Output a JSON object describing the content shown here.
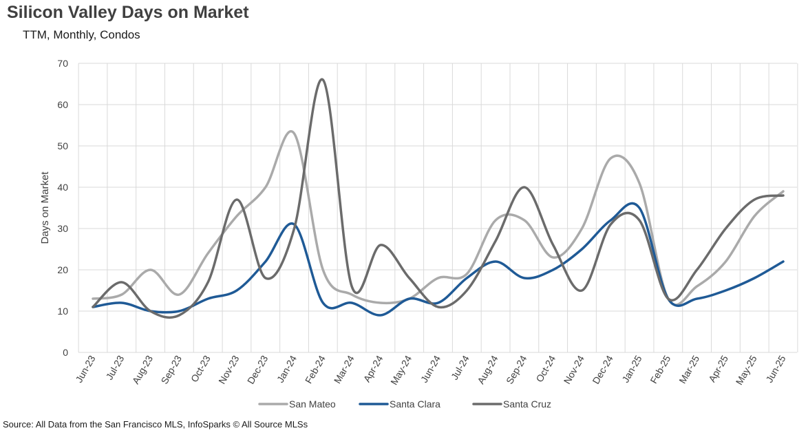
{
  "title": "Silicon Valley Days on Market",
  "subtitle": "TTM, Monthly, Condos",
  "source": "Source: All Data from the San Francisco MLS, InfoSparks © All Source MLSs",
  "chart_data": {
    "type": "line",
    "title": "Silicon Valley Days on Market",
    "subtitle": "TTM, Monthly, Condos",
    "xlabel": "",
    "ylabel": "Days on Market",
    "ylim": [
      0,
      70
    ],
    "yticks": [
      0,
      10,
      20,
      30,
      40,
      50,
      60,
      70
    ],
    "grid": true,
    "legend_position": "bottom",
    "x": [
      "Jun-23",
      "Jul-23",
      "Aug-23",
      "Sep-23",
      "Oct-23",
      "Nov-23",
      "Dec-23",
      "Jan-24",
      "Feb-24",
      "Mar-24",
      "Apr-24",
      "May-24",
      "Jun-24",
      "Jul-24",
      "Aug-24",
      "Sep-24",
      "Oct-24",
      "Nov-24",
      "Dec-24",
      "Jan-25",
      "Feb-25",
      "Mar-25",
      "Apr-25",
      "May-25",
      "Jun-25"
    ],
    "series": [
      {
        "name": "San Mateo",
        "color": "#aaaaaa",
        "values": [
          13,
          14,
          20,
          14,
          24,
          33,
          40,
          53,
          20,
          14,
          12,
          13,
          18,
          19,
          32,
          32,
          23,
          30,
          47,
          41,
          13,
          16,
          22,
          33,
          39
        ]
      },
      {
        "name": "Santa Clara",
        "color": "#1f5a96",
        "values": [
          11,
          12,
          10,
          10,
          13,
          15,
          22,
          31,
          12,
          12,
          9,
          13,
          12,
          18,
          22,
          18,
          20,
          25,
          32,
          35,
          13,
          13,
          15,
          18,
          22
        ]
      },
      {
        "name": "Santa Cruz",
        "color": "#6b6b6b",
        "values": [
          11,
          17,
          10,
          9,
          17,
          37,
          18,
          30,
          66,
          16,
          26,
          18,
          11,
          15,
          27,
          40,
          26,
          15,
          31,
          32,
          13,
          20,
          30,
          37,
          38
        ]
      }
    ]
  }
}
